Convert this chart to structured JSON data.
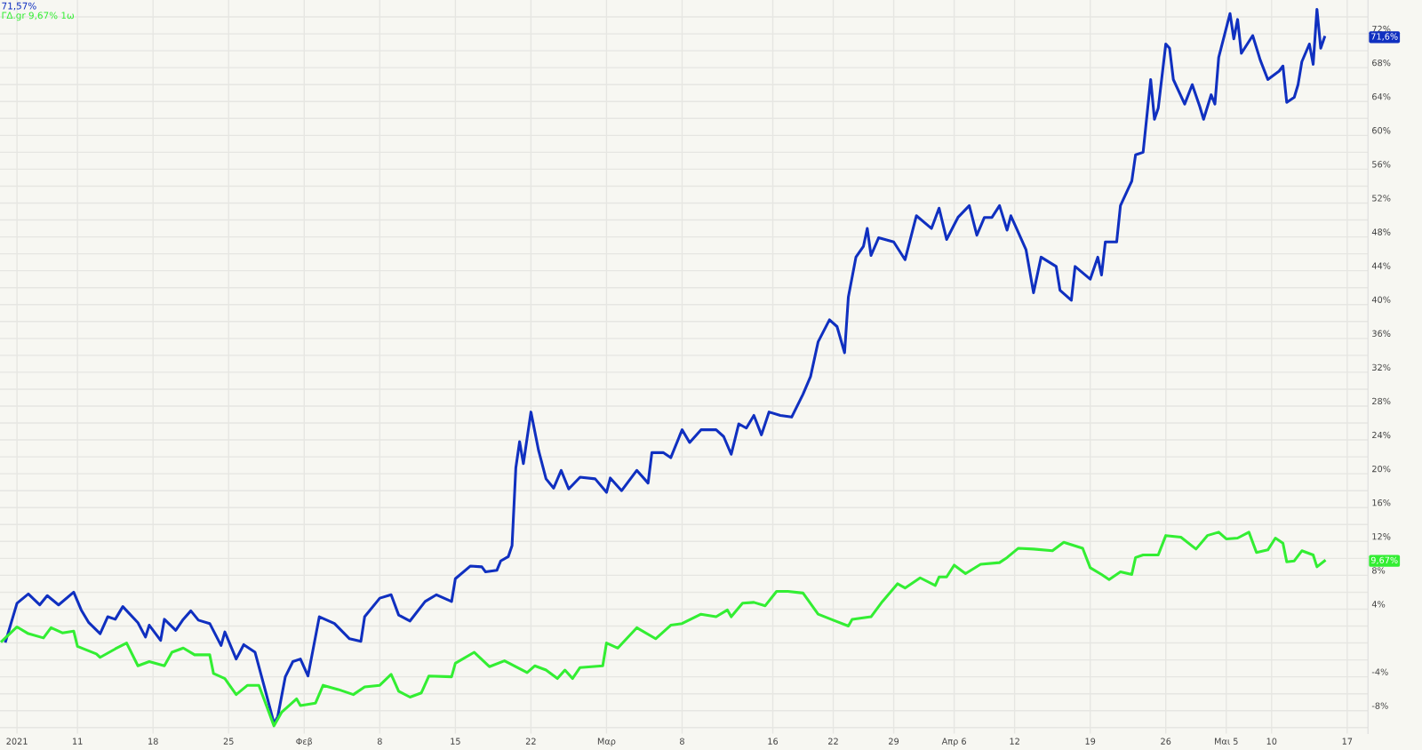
{
  "chart_data": {
    "type": "line",
    "legend": "top left",
    "grid": true,
    "line_style": "solid",
    "marker": "none",
    "ylim": [
      -10.7,
      76.0
    ],
    "categories": [
      null,
      null,
      null,
      null,
      "2021",
      null,
      null,
      null,
      null,
      null,
      null,
      null,
      null,
      null,
      null,
      null,
      null,
      null,
      null,
      null,
      "11",
      null,
      null,
      null,
      null,
      null,
      null,
      null,
      null,
      null,
      null,
      null,
      null,
      null,
      null,
      null,
      null,
      null,
      null,
      null,
      "18",
      null,
      null,
      null,
      null,
      null,
      null,
      null,
      null,
      null,
      null,
      null,
      null,
      null,
      null,
      null,
      null,
      null,
      null,
      null,
      "25",
      null,
      null,
      null,
      null,
      null,
      null,
      null,
      null,
      null,
      null,
      null,
      null,
      null,
      null,
      null,
      null,
      null,
      null,
      null,
      "Φεβ",
      null,
      null,
      null,
      null,
      null,
      null,
      null,
      null,
      null,
      null,
      null,
      null,
      null,
      null,
      null,
      null,
      null,
      null,
      null,
      "8",
      null,
      null,
      null,
      null,
      null,
      null,
      null,
      null,
      null,
      null,
      null,
      null,
      null,
      null,
      null,
      null,
      null,
      null,
      null,
      "15",
      null,
      null,
      null,
      null,
      null,
      null,
      null,
      null,
      null,
      null,
      null,
      null,
      null,
      null,
      null,
      null,
      null,
      null,
      null,
      "22",
      null,
      null,
      null,
      null,
      null,
      null,
      null,
      null,
      null,
      null,
      null,
      null,
      null,
      null,
      null,
      null,
      null,
      null,
      null,
      "Μαρ",
      null,
      null,
      null,
      null,
      null,
      null,
      null,
      null,
      null,
      null,
      null,
      null,
      null,
      null,
      null,
      null,
      null,
      null,
      null,
      "8",
      null,
      null,
      null,
      null,
      null,
      null,
      null,
      null,
      null,
      null,
      null,
      null,
      null,
      null,
      null,
      null,
      null,
      null,
      null,
      null,
      null,
      null,
      null,
      "16",
      null,
      null,
      null,
      null,
      null,
      null,
      null,
      null,
      null,
      null,
      null,
      null,
      null,
      null,
      null,
      "22",
      null,
      null,
      null,
      null,
      null,
      null,
      null,
      null,
      null,
      null,
      null,
      null,
      null,
      null,
      null,
      "29",
      null,
      null,
      null,
      null,
      null,
      null,
      null,
      null,
      null,
      null,
      null,
      null,
      null,
      null,
      null,
      "Απρ 6",
      null,
      null,
      null,
      null,
      null,
      null,
      null,
      null,
      null,
      null,
      null,
      null,
      null,
      null,
      null,
      "12",
      null,
      null,
      null,
      null,
      null,
      null,
      null,
      null,
      null,
      null,
      null,
      null,
      null,
      null,
      null,
      null,
      null,
      null,
      null,
      "19",
      null,
      null,
      null,
      null,
      null,
      null,
      null,
      null,
      null,
      null,
      null,
      null,
      null,
      null,
      null,
      null,
      null,
      null,
      null,
      "26",
      null,
      null,
      null,
      null,
      null,
      null,
      null,
      null,
      null,
      null,
      null,
      null,
      null,
      null,
      null,
      "Μαι 5",
      null,
      null,
      null,
      null,
      null,
      null,
      null,
      null,
      null,
      null,
      null,
      "10",
      null,
      null,
      null,
      null,
      null,
      null,
      null,
      null,
      null,
      null,
      null,
      null,
      null,
      null,
      null,
      null,
      null,
      null,
      null,
      "17",
      null,
      null,
      null,
      null,
      null
    ],
    "yticks": [
      {
        "value": -10,
        "label": null
      },
      {
        "value": -8,
        "label": "-8%"
      },
      {
        "value": -6,
        "label": null
      },
      {
        "value": -4,
        "label": "-4%"
      },
      {
        "value": -2,
        "label": null
      },
      {
        "value": 0,
        "label": null
      },
      {
        "value": 2,
        "label": null
      },
      {
        "value": 4,
        "label": "4%"
      },
      {
        "value": 6,
        "label": null
      },
      {
        "value": 8,
        "label": "8%"
      },
      {
        "value": 10,
        "label": null
      },
      {
        "value": 12,
        "label": "12%"
      },
      {
        "value": 14,
        "label": null
      },
      {
        "value": 16,
        "label": "16%"
      },
      {
        "value": 18,
        "label": null
      },
      {
        "value": 20,
        "label": "20%"
      },
      {
        "value": 22,
        "label": null
      },
      {
        "value": 24,
        "label": "24%"
      },
      {
        "value": 26,
        "label": null
      },
      {
        "value": 28,
        "label": "28%"
      },
      {
        "value": 30,
        "label": null
      },
      {
        "value": 32,
        "label": "32%"
      },
      {
        "value": 34,
        "label": null
      },
      {
        "value": 36,
        "label": "36%"
      },
      {
        "value": 38,
        "label": null
      },
      {
        "value": 40,
        "label": "40%"
      },
      {
        "value": 42,
        "label": null
      },
      {
        "value": 44,
        "label": "44%"
      },
      {
        "value": 46,
        "label": null
      },
      {
        "value": 48,
        "label": "48%"
      },
      {
        "value": 50,
        "label": null
      },
      {
        "value": 52,
        "label": "52%"
      },
      {
        "value": 54,
        "label": null
      },
      {
        "value": 56,
        "label": "56%"
      },
      {
        "value": 58,
        "label": null
      },
      {
        "value": 60,
        "label": "60%"
      },
      {
        "value": 62,
        "label": null
      },
      {
        "value": 64,
        "label": "64%"
      },
      {
        "value": 66,
        "label": null
      },
      {
        "value": 68,
        "label": "68%"
      },
      {
        "value": 70,
        "label": null
      },
      {
        "value": 72,
        "label": "72%"
      },
      {
        "value": 74,
        "label": null
      }
    ],
    "series": [
      {
        "name": "71,57%",
        "color": "#1030c0",
        "values": [
          null,
          0.2,
          null,
          null,
          4.7,
          null,
          null,
          5.8,
          null,
          null,
          4.5,
          null,
          5.6,
          null,
          null,
          4.5,
          null,
          null,
          null,
          6.0,
          null,
          3.9,
          null,
          2.4,
          null,
          null,
          1.1,
          null,
          3.1,
          null,
          2.8,
          null,
          4.3,
          null,
          null,
          null,
          2.4,
          null,
          0.7,
          2.1,
          null,
          null,
          0.3,
          2.8,
          null,
          null,
          1.5,
          null,
          2.8,
          null,
          3.8,
          null,
          2.7,
          null,
          null,
          2.3,
          null,
          null,
          -0.3,
          1.3,
          null,
          null,
          -1.9,
          null,
          -0.2,
          null,
          null,
          -1.1,
          null,
          null,
          -6.1,
          null,
          -9.5,
          -8.7,
          null,
          -4.0,
          null,
          -2.2,
          null,
          -1.9,
          null,
          -3.9,
          null,
          null,
          3.1,
          null,
          null,
          null,
          2.3,
          null,
          null,
          null,
          0.5,
          null,
          null,
          0.2,
          3.1,
          null,
          null,
          null,
          5.3,
          null,
          null,
          5.7,
          null,
          3.3,
          null,
          null,
          2.6,
          null,
          null,
          null,
          4.9,
          null,
          null,
          5.7,
          null,
          null,
          null,
          4.9,
          7.6,
          null,
          null,
          null,
          9.1,
          null,
          null,
          9.0,
          8.4,
          null,
          null,
          8.6,
          9.7,
          null,
          10.2,
          11.5,
          20.7,
          23.8,
          21.2,
          null,
          27.3,
          null,
          22.8,
          null,
          19.4,
          null,
          18.3,
          null,
          20.4,
          null,
          18.2,
          null,
          null,
          19.6,
          null,
          null,
          null,
          19.4,
          null,
          null,
          17.8,
          19.5,
          null,
          null,
          18.0,
          null,
          null,
          null,
          20.4,
          null,
          null,
          18.9,
          22.5,
          null,
          null,
          22.5,
          null,
          21.9,
          null,
          null,
          25.2,
          null,
          23.7,
          null,
          null,
          25.2,
          null,
          null,
          null,
          25.2,
          null,
          24.4,
          null,
          22.3,
          null,
          25.9,
          null,
          25.4,
          null,
          26.9,
          null,
          24.6,
          null,
          27.3,
          null,
          null,
          26.9,
          null,
          null,
          26.7,
          null,
          null,
          29.4,
          null,
          31.5,
          null,
          35.6,
          null,
          null,
          38.2,
          null,
          37.4,
          null,
          34.3,
          40.9,
          null,
          45.6,
          null,
          46.9,
          49.0,
          45.8,
          null,
          47.9,
          null,
          null,
          null,
          47.4,
          null,
          null,
          45.3,
          null,
          null,
          50.5,
          null,
          null,
          null,
          49.0,
          null,
          51.4,
          null,
          47.7,
          null,
          null,
          50.3,
          null,
          null,
          51.7,
          null,
          48.2,
          null,
          50.3,
          null,
          50.3,
          null,
          51.7,
          null,
          48.8,
          50.5,
          null,
          null,
          null,
          46.5,
          null,
          41.4,
          null,
          45.6,
          null,
          null,
          null,
          44.5,
          41.7,
          null,
          null,
          40.5,
          44.5,
          null,
          null,
          null,
          43.0,
          null,
          45.6,
          43.5,
          47.4,
          null,
          null,
          47.4,
          51.7,
          null,
          null,
          54.6,
          57.7,
          null,
          58.0,
          null,
          66.6,
          61.9,
          63.2,
          null,
          70.8,
          70.3,
          66.6,
          null,
          null,
          63.7,
          null,
          66.0,
          null,
          63.4,
          61.9,
          null,
          64.8,
          63.7,
          69.2,
          null,
          null,
          74.4,
          71.4,
          73.7,
          69.7,
          null,
          null,
          71.8,
          null,
          68.9,
          null,
          66.6,
          null,
          null,
          67.6,
          68.2,
          63.9,
          null,
          64.5,
          66.0,
          68.7,
          null,
          70.8,
          68.4,
          74.9,
          70.3,
          71.6,
          null,
          null,
          null,
          null,
          null,
          null,
          null,
          null,
          null,
          null,
          null
        ]
      },
      {
        "name": "ΓΔ.gr 9,67% 1ω",
        "color": "#33ee33",
        "values": [
          0.2,
          null,
          null,
          null,
          1.9,
          null,
          null,
          1.1,
          null,
          null,
          null,
          0.6,
          null,
          1.8,
          null,
          null,
          1.2,
          null,
          null,
          1.4,
          -0.4,
          null,
          null,
          null,
          null,
          -1.3,
          -1.7,
          null,
          null,
          null,
          -0.7,
          null,
          null,
          0.0,
          null,
          null,
          -2.7,
          null,
          null,
          -2.2,
          null,
          null,
          null,
          -2.7,
          null,
          -1.1,
          null,
          null,
          -0.6,
          null,
          null,
          -1.4,
          null,
          null,
          null,
          -1.4,
          -3.6,
          null,
          null,
          -4.2,
          null,
          null,
          -6.1,
          null,
          null,
          -5.0,
          null,
          null,
          -5.0,
          null,
          -7.4,
          null,
          -9.8,
          null,
          -8.2,
          null,
          null,
          null,
          -6.6,
          -7.4,
          null,
          null,
          null,
          -7.1,
          null,
          -5.0,
          null,
          null,
          null,
          -5.5,
          null,
          null,
          null,
          -6.1,
          null,
          null,
          -5.2,
          null,
          null,
          null,
          -5.0,
          null,
          null,
          -3.7,
          null,
          -5.7,
          null,
          null,
          -6.4,
          null,
          null,
          -5.9,
          null,
          -3.9,
          null,
          null,
          null,
          null,
          null,
          -4.0,
          -2.4,
          null,
          null,
          null,
          null,
          -1.1,
          null,
          null,
          null,
          -2.8,
          null,
          null,
          null,
          -2.1,
          null,
          null,
          null,
          null,
          null,
          -3.5,
          null,
          -2.7,
          null,
          null,
          -3.2,
          null,
          null,
          -4.2,
          null,
          -3.2,
          null,
          -4.2,
          null,
          -2.9,
          null,
          null,
          null,
          null,
          null,
          -2.7,
          0.0,
          null,
          null,
          -0.6,
          null,
          null,
          null,
          null,
          1.8,
          null,
          null,
          null,
          null,
          0.5,
          null,
          null,
          null,
          2.1,
          null,
          null,
          2.3,
          null,
          null,
          null,
          null,
          3.4,
          null,
          null,
          null,
          3.1,
          null,
          null,
          3.9,
          3.1,
          null,
          null,
          4.7,
          null,
          null,
          4.8,
          null,
          null,
          4.4,
          null,
          null,
          6.1,
          null,
          null,
          6.1,
          null,
          null,
          null,
          5.9,
          null,
          null,
          null,
          3.4,
          null,
          null,
          null,
          2.7,
          null,
          null,
          null,
          2.0,
          2.8,
          null,
          null,
          null,
          null,
          3.1,
          null,
          null,
          4.9,
          null,
          null,
          null,
          7.0,
          null,
          6.5,
          null,
          null,
          null,
          7.7,
          null,
          null,
          null,
          6.8,
          7.8,
          null,
          7.8,
          null,
          9.2,
          null,
          null,
          8.2,
          null,
          null,
          null,
          9.3,
          null,
          null,
          null,
          null,
          9.5,
          null,
          10.1,
          null,
          null,
          11.2,
          null,
          null,
          null,
          11.1,
          null,
          null,
          null,
          null,
          10.9,
          null,
          null,
          11.9,
          null,
          null,
          null,
          null,
          11.2,
          null,
          8.9,
          null,
          null,
          8.1,
          null,
          7.5,
          null,
          null,
          8.4,
          null,
          null,
          8.1,
          10.1,
          null,
          10.4,
          null,
          null,
          null,
          10.4,
          null,
          12.7,
          null,
          null,
          null,
          12.5,
          null,
          null,
          null,
          11.1,
          null,
          null,
          12.7,
          null,
          null,
          13.1,
          null,
          12.3,
          null,
          null,
          12.4,
          null,
          null,
          13.1,
          null,
          10.7,
          null,
          null,
          11.0,
          null,
          12.4,
          null,
          11.8,
          9.6,
          null,
          9.7,
          null,
          10.9,
          null,
          null,
          10.4,
          9.0,
          null,
          9.7,
          null,
          null,
          null,
          null,
          null,
          null,
          null,
          null,
          null,
          null,
          null
        ]
      }
    ],
    "annotations": [
      "71,6%",
      "9,67%"
    ]
  }
}
